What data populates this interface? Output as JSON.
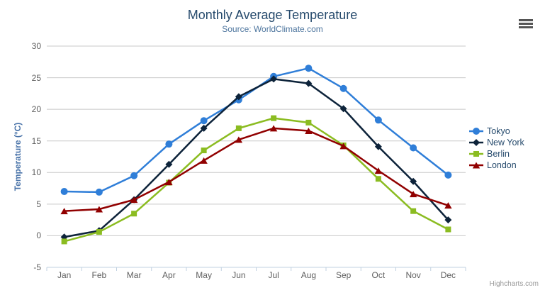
{
  "chart": {
    "title": "Monthly Average Temperature",
    "subtitle": "Source: WorldClimate.com",
    "credits": "Highcharts.com"
  },
  "chart_data": {
    "type": "line",
    "title": "Monthly Average Temperature",
    "subtitle": "Source: WorldClimate.com",
    "categories": [
      "Jan",
      "Feb",
      "Mar",
      "Apr",
      "May",
      "Jun",
      "Jul",
      "Aug",
      "Sep",
      "Oct",
      "Nov",
      "Dec"
    ],
    "xlabel": "",
    "ylabel": "Temperature (°C)",
    "ylim": [
      -5,
      30
    ],
    "yticks": [
      -5,
      0,
      5,
      10,
      15,
      20,
      25,
      30
    ],
    "grid": true,
    "legend_position": "right",
    "series": [
      {
        "name": "Tokyo",
        "color": "#2f7ed8",
        "marker": "circle",
        "values": [
          7.0,
          6.9,
          9.5,
          14.5,
          18.2,
          21.5,
          25.2,
          26.5,
          23.3,
          18.3,
          13.9,
          9.6
        ]
      },
      {
        "name": "New York",
        "color": "#0d233a",
        "marker": "diamond",
        "values": [
          -0.2,
          0.8,
          5.7,
          11.3,
          17.0,
          22.0,
          24.8,
          24.1,
          20.1,
          14.1,
          8.6,
          2.5
        ]
      },
      {
        "name": "Berlin",
        "color": "#8bbc21",
        "marker": "square",
        "values": [
          -0.9,
          0.6,
          3.5,
          8.4,
          13.5,
          17.0,
          18.6,
          17.9,
          14.3,
          9.0,
          3.9,
          1.0
        ]
      },
      {
        "name": "London",
        "color": "#910000",
        "marker": "triangle",
        "values": [
          3.9,
          4.2,
          5.7,
          8.5,
          11.9,
          15.2,
          17.0,
          16.6,
          14.2,
          10.3,
          6.6,
          4.8
        ]
      }
    ]
  },
  "colors": {
    "title": "#274b6d",
    "subtitle": "#4d759e",
    "axis_title": "#4872a8",
    "axis_labels": "#606060",
    "gridline": "#c8c8c8",
    "axis_line": "#c0d0e0",
    "legend_text": "#274b6d",
    "credits": "#999999"
  }
}
